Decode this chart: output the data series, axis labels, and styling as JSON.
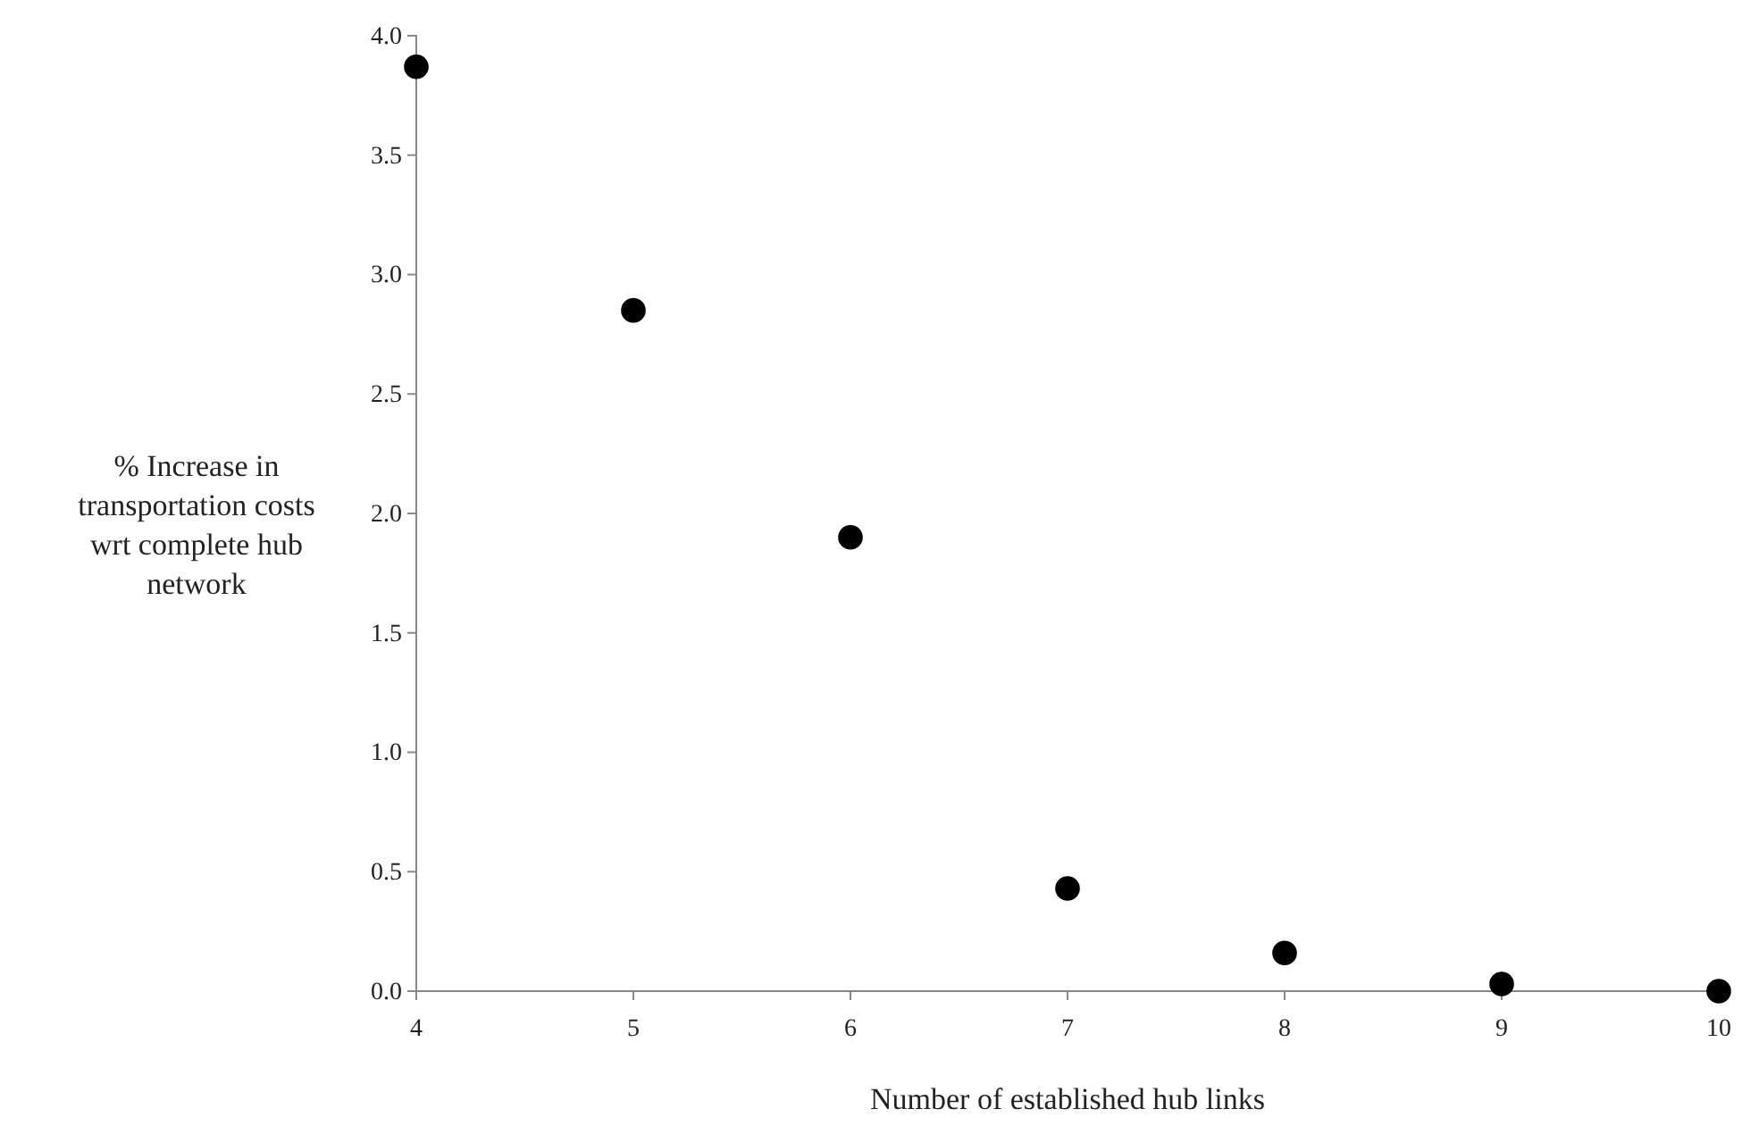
{
  "chart_data": {
    "type": "scatter",
    "xlabel": "Number of established hub links",
    "ylabel": "% Increase in transportation costs wrt complete hub network",
    "x": [
      4,
      5,
      6,
      7,
      8,
      9,
      10
    ],
    "series": [
      {
        "color": "#000000",
        "values": [
          3.87,
          2.85,
          1.9,
          0.43,
          0.16,
          0.03,
          0.0
        ]
      }
    ],
    "xlim": [
      4,
      10
    ],
    "xticks": [
      4,
      5,
      6,
      7,
      8,
      9,
      10
    ],
    "ylim": [
      0,
      4
    ],
    "yticks": [
      {
        "value": 0,
        "label": "0.0"
      },
      {
        "value": 0.5,
        "label": "0.5"
      },
      {
        "value": 1,
        "label": "1.0"
      },
      {
        "value": 1.5,
        "label": "1.5"
      },
      {
        "value": 2,
        "label": "2.0"
      },
      {
        "value": 2.5,
        "label": "2.5"
      },
      {
        "value": 3,
        "label": "3.0"
      },
      {
        "value": 3.5,
        "label": "3.5"
      },
      {
        "value": 4,
        "label": "4.0"
      }
    ],
    "marker": "circle",
    "grid": false
  }
}
